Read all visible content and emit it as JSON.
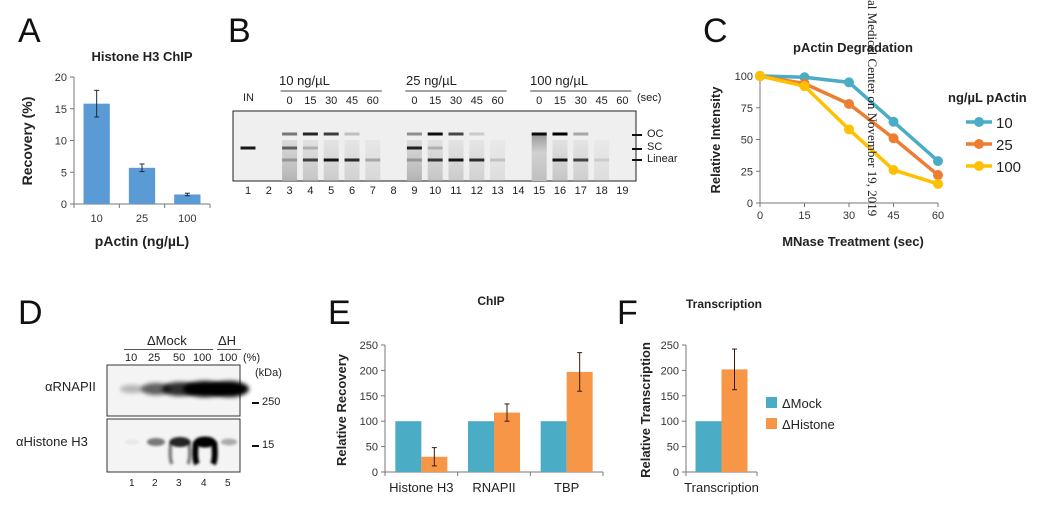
{
  "panels": {
    "A": {
      "letter": "A"
    },
    "B": {
      "letter": "B"
    },
    "C": {
      "letter": "C"
    },
    "D": {
      "letter": "D"
    },
    "E": {
      "letter": "E"
    },
    "F": {
      "letter": "F"
    }
  },
  "watermark": "al Medical Center on November 19, 2019",
  "gel_B": {
    "groups": [
      {
        "label": "10 ng/µL",
        "lanes": [
          3,
          4,
          5,
          6,
          7
        ]
      },
      {
        "label": "25 ng/µL",
        "lanes": [
          9,
          10,
          11,
          12,
          13
        ]
      },
      {
        "label": "100 ng/µL",
        "lanes": [
          15,
          16,
          17,
          18,
          19
        ]
      }
    ],
    "time_labels": [
      "0",
      "15",
      "30",
      "45",
      "60"
    ],
    "time_unit": "(sec)",
    "input_label": "IN",
    "lane_numbers": [
      "1",
      "2",
      "3",
      "4",
      "5",
      "6",
      "7",
      "8",
      "9",
      "10",
      "11",
      "12",
      "13",
      "14",
      "15",
      "16",
      "17",
      "18",
      "19"
    ],
    "markers": [
      "OC",
      "SC",
      "Linear"
    ]
  },
  "blot_D": {
    "groups": [
      {
        "label": "ΔMock",
        "span": [
          1,
          4
        ]
      },
      {
        "label": "ΔH",
        "span": [
          5,
          5
        ]
      }
    ],
    "percents": [
      "10",
      "25",
      "50",
      "100",
      "100"
    ],
    "percent_unit": "(%)",
    "kda_label": "(kDa)",
    "rows": [
      {
        "label": "αRNAPII",
        "marker": "250"
      },
      {
        "label": "αHistone H3",
        "marker": "15"
      }
    ],
    "lane_numbers": [
      "1",
      "2",
      "3",
      "4",
      "5"
    ]
  },
  "chart_data": [
    {
      "id": "A",
      "type": "bar",
      "title": "Histone H3 ChIP",
      "xlabel": "pActin (ng/µL)",
      "ylabel": "Recovery (%)",
      "categories": [
        "10",
        "25",
        "100"
      ],
      "values": [
        15.8,
        5.7,
        1.5
      ],
      "errors": [
        2.1,
        0.6,
        0.2
      ],
      "ylim": [
        0,
        20
      ],
      "yticks": [
        0,
        5,
        10,
        15,
        20
      ],
      "color": "#5B9BD5",
      "grid": false
    },
    {
      "id": "C",
      "type": "line",
      "title": "pActin Degradation",
      "xlabel": "MNase Treatment (sec)",
      "ylabel": "Relative Intensity",
      "x": [
        0,
        15,
        30,
        45,
        60
      ],
      "xlim": [
        0,
        60
      ],
      "ylim": [
        0,
        100
      ],
      "yticks": [
        0,
        25,
        50,
        75,
        100
      ],
      "legend_title": "ng/µL pActin",
      "legend_position": "right",
      "series": [
        {
          "name": "10",
          "values": [
            100,
            99,
            95,
            64,
            33
          ],
          "color": "#4BACC6"
        },
        {
          "name": "25",
          "values": [
            100,
            94,
            78,
            51,
            22
          ],
          "color": "#ED7D31"
        },
        {
          "name": "100",
          "values": [
            100,
            92,
            58,
            26,
            15
          ],
          "color": "#FFC000"
        }
      ],
      "grid": false
    },
    {
      "id": "E",
      "type": "bar",
      "title": "ChIP",
      "xlabel": "",
      "ylabel": "Relative Recovery",
      "categories": [
        "Histone H3",
        "RNAPII",
        "TBP"
      ],
      "ylim": [
        0,
        250
      ],
      "yticks": [
        0,
        50,
        100,
        150,
        200,
        250
      ],
      "series": [
        {
          "name": "ΔMock",
          "values": [
            100,
            100,
            100
          ],
          "errors": [
            null,
            null,
            null
          ],
          "color": "#4BACC6"
        },
        {
          "name": "ΔHistone",
          "values": [
            30,
            117,
            197
          ],
          "errors": [
            18,
            17,
            38
          ],
          "color": "#F79646"
        }
      ],
      "grid": false
    },
    {
      "id": "F",
      "type": "bar",
      "title": "Transcription",
      "xlabel": "",
      "ylabel": "Relative Transcription",
      "categories": [
        "Transcription"
      ],
      "ylim": [
        0,
        250
      ],
      "yticks": [
        0,
        50,
        100,
        150,
        200,
        250
      ],
      "legend_position": "right",
      "series": [
        {
          "name": "ΔMock",
          "values": [
            100
          ],
          "errors": [
            null
          ],
          "color": "#4BACC6"
        },
        {
          "name": "ΔHistone",
          "values": [
            202
          ],
          "errors": [
            40
          ],
          "color": "#F79646"
        }
      ],
      "grid": false
    }
  ]
}
